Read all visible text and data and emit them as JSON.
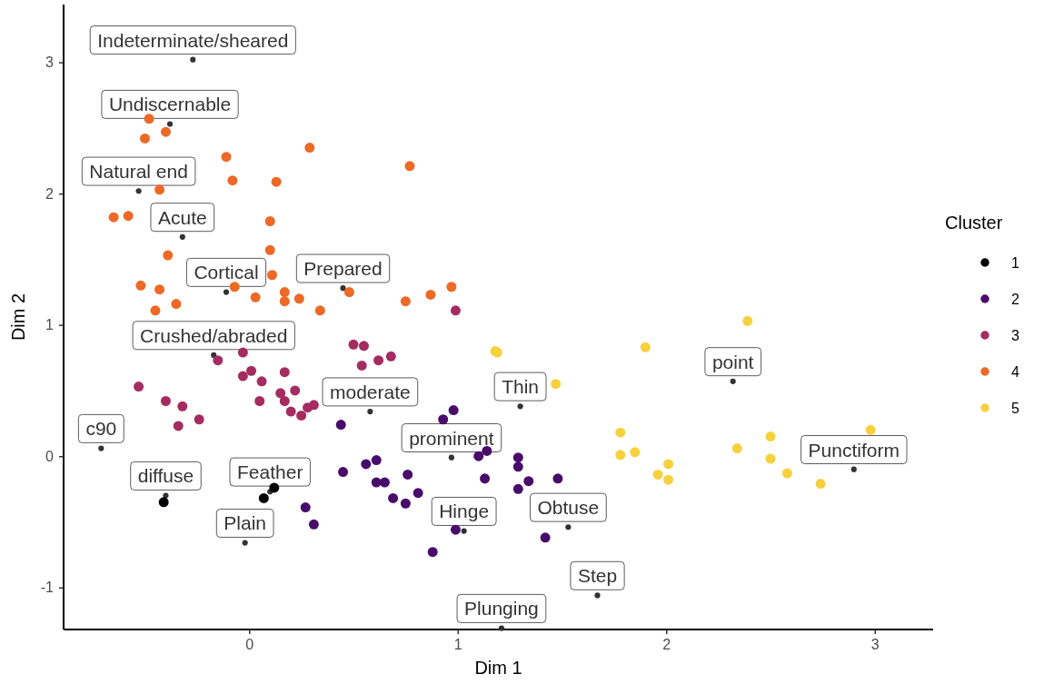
{
  "chart_data": {
    "type": "scatter",
    "xlabel": "Dim 1",
    "ylabel": "Dim 2",
    "legend_title": "Cluster",
    "legend": "right",
    "marker": "circle",
    "grid": false,
    "xlim": [
      -0.89,
      3.28
    ],
    "ylim": [
      -1.32,
      3.44
    ],
    "xticks": [
      0,
      1,
      2,
      3
    ],
    "yticks": [
      -1,
      0,
      1,
      2,
      3
    ],
    "series": [
      {
        "name": "1",
        "color": "#000004",
        "x": [
          -0.41,
          0.07,
          0.12
        ],
        "values": [
          -0.35,
          -0.32,
          -0.24
        ]
      },
      {
        "name": "2",
        "color": "#4a0c6b",
        "x": [
          0.44,
          0.45,
          0.56,
          0.27,
          0.31,
          0.98,
          0.93,
          0.61,
          0.76,
          0.61,
          0.65,
          0.69,
          0.75,
          0.81,
          1.1,
          1.14,
          1.13,
          1.29,
          1.29,
          1.34,
          1.29,
          1.48,
          0.99,
          0.88,
          1.42
        ],
        "values": [
          0.24,
          -0.12,
          -0.06,
          -0.39,
          -0.52,
          0.35,
          0.28,
          -0.03,
          -0.14,
          -0.2,
          -0.2,
          -0.32,
          -0.36,
          -0.28,
          0.0,
          0.04,
          -0.17,
          -0.01,
          -0.08,
          -0.19,
          -0.25,
          -0.17,
          -0.56,
          -0.73,
          -0.62
        ]
      },
      {
        "name": "3",
        "color": "#a52c60",
        "x": [
          0.99,
          -0.03,
          -0.15,
          0.01,
          -0.03,
          0.17,
          0.06,
          -0.53,
          -0.4,
          -0.32,
          0.15,
          0.22,
          0.05,
          0.17,
          -0.34,
          -0.24,
          0.2,
          0.25,
          0.28,
          0.31,
          0.5,
          0.55,
          0.54,
          0.62,
          0.68
        ],
        "values": [
          1.11,
          0.79,
          0.73,
          0.65,
          0.61,
          0.64,
          0.57,
          0.53,
          0.42,
          0.38,
          0.48,
          0.5,
          0.42,
          0.42,
          0.23,
          0.28,
          0.34,
          0.31,
          0.37,
          0.39,
          0.85,
          0.84,
          0.69,
          0.73,
          0.76
        ]
      },
      {
        "name": "4",
        "color": "#ed6925",
        "x": [
          -0.48,
          -0.4,
          -0.5,
          0.29,
          -0.11,
          -0.08,
          0.13,
          -0.43,
          -0.65,
          -0.58,
          0.1,
          0.1,
          -0.39,
          0.11,
          -0.07,
          -0.52,
          -0.43,
          -0.35,
          -0.45,
          0.03,
          0.17,
          0.17,
          0.24,
          0.34,
          0.48,
          0.77,
          0.75,
          0.87,
          0.97
        ],
        "values": [
          2.57,
          2.47,
          2.42,
          2.35,
          2.28,
          2.1,
          2.09,
          2.03,
          1.82,
          1.83,
          1.79,
          1.57,
          1.53,
          1.38,
          1.29,
          1.3,
          1.27,
          1.16,
          1.11,
          1.21,
          1.25,
          1.18,
          1.2,
          1.11,
          1.25,
          2.21,
          1.18,
          1.23,
          1.29
        ]
      },
      {
        "name": "5",
        "color": "#f7d13d",
        "x": [
          1.18,
          1.19,
          1.9,
          1.47,
          1.78,
          1.78,
          1.85,
          1.96,
          2.01,
          2.01,
          2.39,
          2.34,
          2.5,
          2.5,
          2.58,
          2.74,
          2.98
        ],
        "values": [
          0.8,
          0.79,
          0.83,
          0.55,
          0.18,
          0.01,
          0.03,
          -0.14,
          -0.06,
          -0.18,
          1.03,
          0.06,
          0.15,
          -0.02,
          -0.13,
          -0.21,
          0.2
        ]
      },
      {
        "type": "scatter",
        "marker": "circle",
        "color": "#333333",
        "x": [
          -0.27,
          -0.38,
          -0.53,
          -0.32,
          -0.11,
          0.45,
          -0.17,
          0.58,
          0.97,
          1.3,
          2.32,
          -0.71,
          -0.4,
          0.1,
          -0.02,
          1.03,
          1.53,
          1.67,
          1.21,
          2.9
        ],
        "values": [
          3.02,
          2.53,
          2.02,
          1.67,
          1.25,
          1.28,
          0.77,
          0.34,
          -0.01,
          0.38,
          0.57,
          0.06,
          -0.3,
          -0.27,
          -0.66,
          -0.57,
          -0.54,
          -1.06,
          -1.31,
          -0.1
        ],
        "value_labels": [
          "Indeterminate/sheared",
          "Undiscernable",
          "Natural end",
          "Acute",
          "Cortical",
          "Prepared",
          "Crushed/abraded",
          "moderate",
          "prominent",
          "Thin",
          "point",
          "c90",
          "diffuse",
          "Feather",
          "Plain",
          "Hinge",
          "Obtuse",
          "Step",
          "Plunging",
          "Punctiform"
        ]
      }
    ]
  }
}
